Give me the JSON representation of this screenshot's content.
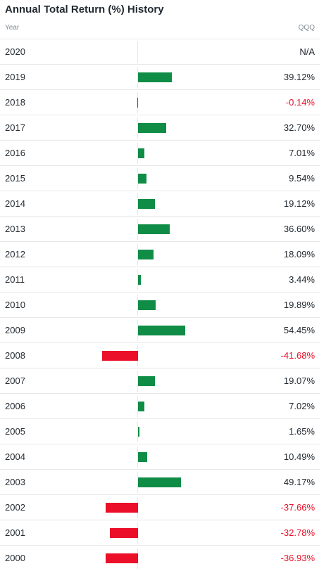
{
  "title": "Annual Total Return (%) History",
  "columns": {
    "year": "Year",
    "series": "QQQ"
  },
  "colors": {
    "positive": "#0f8c46",
    "negative": "#eb0f29"
  },
  "chart_data": {
    "type": "bar",
    "orientation": "horizontal",
    "title": "Annual Total Return (%) History",
    "series": [
      {
        "name": "QQQ",
        "values": [
          null,
          39.12,
          -0.14,
          32.7,
          7.01,
          9.54,
          19.12,
          36.6,
          18.09,
          3.44,
          19.89,
          54.45,
          -41.68,
          19.07,
          7.02,
          1.65,
          10.49,
          49.17,
          -37.66,
          -32.78,
          -36.93
        ]
      }
    ],
    "categories": [
      "2020",
      "2019",
      "2018",
      "2017",
      "2016",
      "2015",
      "2014",
      "2013",
      "2012",
      "2011",
      "2010",
      "2009",
      "2008",
      "2007",
      "2006",
      "2005",
      "2004",
      "2003",
      "2002",
      "2001",
      "2000"
    ],
    "labels": [
      "N/A",
      "39.12%",
      "-0.14%",
      "32.70%",
      "7.01%",
      "9.54%",
      "19.12%",
      "36.60%",
      "18.09%",
      "3.44%",
      "19.89%",
      "54.45%",
      "-41.68%",
      "19.07%",
      "7.02%",
      "1.65%",
      "10.49%",
      "49.17%",
      "-37.66%",
      "-32.78%",
      "-36.93%"
    ],
    "grid": false,
    "legend": "none"
  }
}
